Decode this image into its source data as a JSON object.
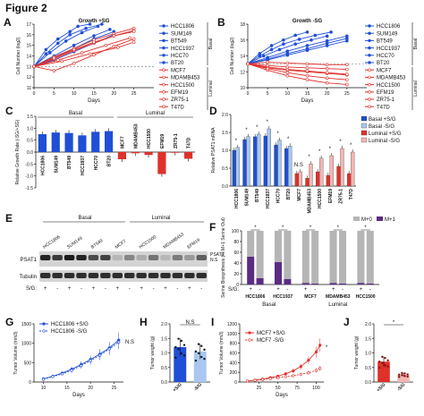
{
  "figure_title": "Figure 2",
  "colors": {
    "blue": "#1f4fd6",
    "red": "#e0302a",
    "light_blue": "#a9c7ef",
    "pink": "#f2b7b3",
    "gray": "#b5b5b5",
    "purple": "#5a2c83",
    "ink": "#111111"
  },
  "cell_lines": {
    "basal": [
      "HCC1806",
      "SUM149",
      "BT549",
      "HCC1937",
      "HCC70",
      "BT20"
    ],
    "luminal": [
      "MCF7",
      "MDAMB453",
      "HCC1500",
      "EFM19",
      "ZR75-1",
      "T47D"
    ],
    "group_basal": "Basal",
    "group_luminal": "Luminal"
  },
  "blot": {
    "headers": [
      "HCC1806",
      "SUM149",
      "BT549",
      "MCF7",
      "HCC1500",
      "MDAMB453",
      "EFM19"
    ],
    "row_psat1": "PSAT1",
    "row_tubulin": "Tubulin",
    "psat1_marks": [
      "PSAT1",
      "N.S"
    ],
    "sg_label": "S/G:",
    "signs": [
      "+",
      "-",
      "+",
      "-",
      "+",
      "-",
      "+",
      "-",
      "+",
      "-",
      "+",
      "-",
      "+",
      "-"
    ]
  },
  "chart_data": [
    {
      "panel": "A",
      "type": "line",
      "title": "Growth +SG",
      "xlabel": "Days",
      "ylabel": "Cell Number (log2)",
      "xlim": [
        0,
        30
      ],
      "ylim": [
        11,
        17
      ],
      "xticks": [
        0,
        5,
        10,
        15,
        20,
        25
      ],
      "yticks": [
        11,
        12,
        13,
        14,
        15,
        16,
        17
      ],
      "reference_line": 13,
      "series": [
        {
          "name": "HCC1806",
          "group": "basal",
          "x": [
            0,
            3,
            6,
            9,
            11,
            14
          ],
          "y": [
            13.0,
            14.6,
            15.6,
            16.3,
            16.8,
            17.0
          ]
        },
        {
          "name": "SUM149",
          "group": "basal",
          "x": [
            0,
            3,
            6,
            9,
            13,
            17
          ],
          "y": [
            13.0,
            14.2,
            15.2,
            16.0,
            16.6,
            17.0
          ]
        },
        {
          "name": "BT549",
          "group": "basal",
          "x": [
            0,
            4,
            8,
            12,
            16
          ],
          "y": [
            13.0,
            14.3,
            15.4,
            16.2,
            16.8
          ]
        },
        {
          "name": "HCC1937",
          "group": "basal",
          "x": [
            0,
            5,
            10,
            15,
            19
          ],
          "y": [
            13.0,
            14.0,
            15.0,
            15.9,
            16.5
          ]
        },
        {
          "name": "HCC70",
          "group": "basal",
          "x": [
            0,
            5,
            10,
            15,
            20
          ],
          "y": [
            13.0,
            13.8,
            14.7,
            15.6,
            16.3
          ]
        },
        {
          "name": "BT20",
          "group": "basal",
          "x": [
            0,
            5,
            10,
            15,
            20
          ],
          "y": [
            13.0,
            13.6,
            14.4,
            15.2,
            16.0
          ]
        },
        {
          "name": "MCF7",
          "group": "luminal",
          "x": [
            0,
            5,
            10,
            15,
            20,
            25
          ],
          "y": [
            13.0,
            13.9,
            14.7,
            15.5,
            16.1,
            16.6
          ]
        },
        {
          "name": "MDAMB453",
          "group": "luminal",
          "x": [
            0,
            5,
            10,
            15,
            20,
            25
          ],
          "y": [
            13.0,
            13.7,
            14.5,
            15.2,
            15.9,
            16.4
          ]
        },
        {
          "name": "HCC1500",
          "group": "luminal",
          "x": [
            0,
            6,
            12,
            18,
            24
          ],
          "y": [
            13.0,
            13.6,
            14.3,
            15.0,
            15.7
          ]
        },
        {
          "name": "EFM19",
          "group": "luminal",
          "x": [
            0,
            5,
            10,
            15,
            20,
            25
          ],
          "y": [
            13.0,
            12.6,
            13.3,
            14.1,
            14.9,
            15.6
          ]
        },
        {
          "name": "ZR75-1",
          "group": "luminal",
          "x": [
            0,
            7,
            14,
            21,
            25
          ],
          "y": [
            13.0,
            13.5,
            14.2,
            14.8,
            15.3
          ]
        },
        {
          "name": "T47D",
          "group": "luminal",
          "x": [
            0,
            5,
            10,
            15,
            20,
            25
          ],
          "y": [
            13.0,
            13.8,
            14.6,
            15.3,
            15.9,
            16.3
          ]
        }
      ]
    },
    {
      "panel": "B",
      "type": "line",
      "title": "Growth -SG",
      "xlabel": "Days",
      "ylabel": "Cell Number (log2)",
      "xlim": [
        0,
        30
      ],
      "ylim": [
        10,
        18
      ],
      "xticks": [
        0,
        5,
        10,
        15,
        20,
        25
      ],
      "yticks": [
        10,
        12,
        14,
        16,
        18
      ],
      "reference_line": 13,
      "series": [
        {
          "name": "HCC1806",
          "group": "basal",
          "x": [
            0,
            3,
            6,
            9,
            12,
            15
          ],
          "y": [
            13.0,
            14.3,
            15.3,
            16.0,
            16.6,
            17.0
          ]
        },
        {
          "name": "SUM149",
          "group": "basal",
          "x": [
            0,
            3,
            6,
            9,
            13,
            17,
            21
          ],
          "y": [
            13.0,
            14.0,
            14.8,
            15.5,
            16.1,
            16.6,
            17.0
          ]
        },
        {
          "name": "BT549",
          "group": "basal",
          "x": [
            0,
            4,
            8,
            12,
            16,
            20
          ],
          "y": [
            13.0,
            14.0,
            14.8,
            15.5,
            16.0,
            16.5
          ]
        },
        {
          "name": "HCC1937",
          "group": "basal",
          "x": [
            0,
            5,
            10,
            15,
            20,
            25
          ],
          "y": [
            13.0,
            13.8,
            14.6,
            15.3,
            15.9,
            16.5
          ]
        },
        {
          "name": "HCC70",
          "group": "basal",
          "x": [
            0,
            5,
            10,
            15,
            20,
            25
          ],
          "y": [
            13.0,
            13.6,
            14.3,
            14.9,
            15.6,
            16.2
          ]
        },
        {
          "name": "BT20",
          "group": "basal",
          "x": [
            0,
            5,
            10,
            15,
            20,
            25
          ],
          "y": [
            13.0,
            13.5,
            14.1,
            14.7,
            15.3,
            15.9
          ]
        },
        {
          "name": "MCF7",
          "group": "luminal",
          "x": [
            0,
            5,
            10,
            15,
            20,
            25
          ],
          "y": [
            13.0,
            12.5,
            12.2,
            12.0,
            11.8,
            11.6
          ]
        },
        {
          "name": "MDAMB453",
          "group": "luminal",
          "x": [
            0,
            5,
            10,
            15,
            20,
            25
          ],
          "y": [
            13.0,
            13.2,
            13.1,
            13.0,
            12.9,
            12.9
          ]
        },
        {
          "name": "HCC1500",
          "group": "luminal",
          "x": [
            0,
            5,
            10,
            15,
            20,
            25
          ],
          "y": [
            13.0,
            12.6,
            12.3,
            12.1,
            11.9,
            11.7
          ]
        },
        {
          "name": "EFM19",
          "group": "luminal",
          "x": [
            0,
            5,
            10,
            15,
            20,
            25
          ],
          "y": [
            13.0,
            12.2,
            11.5,
            11.0,
            10.6,
            10.4
          ]
        },
        {
          "name": "ZR75-1",
          "group": "luminal",
          "x": [
            0,
            5,
            10,
            15,
            20,
            25
          ],
          "y": [
            13.0,
            12.8,
            12.6,
            12.5,
            12.4,
            12.3
          ]
        },
        {
          "name": "T47D",
          "group": "luminal",
          "x": [
            0,
            5,
            10,
            15,
            20,
            25
          ],
          "y": [
            13.0,
            12.4,
            11.9,
            11.5,
            11.2,
            11.0
          ]
        }
      ]
    },
    {
      "panel": "C",
      "type": "bar",
      "ylabel": "Relative Growth Rate (-SG/+SG)",
      "ylim": [
        -1.5,
        1.5
      ],
      "yticks": [
        -1.5,
        -1.0,
        -0.5,
        0.0,
        0.5,
        1.0,
        1.5
      ],
      "categories": [
        "HCC1806",
        "SUM149",
        "BT549",
        "HCC1937",
        "HCC70",
        "BT20",
        "MCF7",
        "MDAMB453",
        "HCC1500",
        "EFM19",
        "ZR75-1",
        "T47D"
      ],
      "values": [
        0.75,
        0.82,
        0.8,
        0.7,
        0.85,
        0.88,
        -0.3,
        -0.05,
        -0.12,
        -0.92,
        -0.03,
        -0.28
      ]
    },
    {
      "panel": "D",
      "type": "bar",
      "ylabel": "Relative PSAT1 mRNA",
      "ylim": [
        0,
        2.0
      ],
      "yticks": [
        0.0,
        0.5,
        1.0,
        1.5,
        2.0
      ],
      "categories": [
        "HCC1806",
        "SUM149",
        "BT549",
        "HCC1937",
        "HCC70",
        "BT20",
        "MCF7",
        "MDAMB453",
        "HCC1500",
        "EFM19",
        "ZR75-1",
        "T47D"
      ],
      "series": [
        {
          "name": "Basal +S/G",
          "values": [
            1.0,
            1.3,
            1.38,
            1.4,
            1.15,
            1.05,
            null,
            null,
            null,
            null,
            null,
            null
          ]
        },
        {
          "name": "Basal -S/G",
          "values": [
            1.08,
            1.38,
            1.45,
            1.6,
            1.28,
            1.12,
            null,
            null,
            null,
            null,
            null,
            null
          ]
        },
        {
          "name": "Luminal +S/G",
          "values": [
            null,
            null,
            null,
            null,
            null,
            null,
            0.35,
            0.22,
            0.4,
            0.3,
            0.55,
            0.35
          ]
        },
        {
          "name": "Luminal -S/G",
          "values": [
            null,
            null,
            null,
            null,
            null,
            null,
            0.4,
            0.62,
            0.78,
            0.85,
            1.05,
            0.95
          ]
        }
      ],
      "annotations": [
        "*",
        "*",
        "*",
        "*",
        "*",
        "*",
        "N.S",
        "*",
        "*",
        "*",
        "*",
        "*"
      ]
    },
    {
      "panel": "F",
      "type": "bar",
      "ylabel": "Serine Biosynthesis (% M+1 Serine Out)",
      "ylim": [
        0,
        100
      ],
      "yticks": [
        0,
        20,
        40,
        60,
        80,
        100
      ],
      "legend": [
        "M+0",
        "M+1"
      ],
      "categories": [
        "HCC1806",
        "HCC1937",
        "MCF7",
        "MDAMB453",
        "HCC1500"
      ],
      "groups": [
        "Basal",
        "Basal",
        "Luminal",
        "Luminal",
        "Luminal"
      ],
      "series": [
        {
          "name": "M+1",
          "plus": [
            52,
            42,
            3,
            3,
            3
          ],
          "minus": [
            12,
            10,
            2,
            2,
            2
          ]
        },
        {
          "name": "M+0",
          "plus": [
            48,
            58,
            97,
            97,
            97
          ],
          "minus": [
            88,
            90,
            98,
            98,
            98
          ]
        }
      ],
      "sg_label": "S/G:",
      "annotations": [
        "*",
        "*",
        "*",
        "*",
        "*"
      ]
    },
    {
      "panel": "G",
      "type": "line",
      "xlabel": "Days",
      "ylabel": "Tumor Volume (mm3)",
      "xlim": [
        8,
        27
      ],
      "ylim": [
        0,
        1500
      ],
      "xticks": [
        10,
        15,
        20,
        25
      ],
      "yticks": [
        0,
        500,
        1000,
        1500
      ],
      "series": [
        {
          "name": "HCC1806 +S/G",
          "x": [
            10,
            12,
            14,
            16,
            18,
            20,
            22,
            24,
            26
          ],
          "y": [
            80,
            150,
            230,
            330,
            450,
            580,
            720,
            880,
            1080
          ]
        },
        {
          "name": "HCC1806 -S/G",
          "x": [
            10,
            12,
            14,
            16,
            18,
            20,
            22,
            24,
            26
          ],
          "y": [
            70,
            140,
            210,
            300,
            420,
            550,
            690,
            850,
            1030
          ]
        }
      ],
      "annotation": "N.S"
    },
    {
      "panel": "H",
      "type": "bar",
      "ylabel": "Tumor weight (g)",
      "ylim": [
        0,
        2.0
      ],
      "yticks": [
        0.0,
        0.5,
        1.0,
        1.5,
        2.0
      ],
      "categories": [
        "+S/G",
        "-S/G"
      ],
      "values": [
        1.2,
        1.05
      ],
      "annotation": "N.S"
    },
    {
      "panel": "I",
      "type": "line",
      "xlabel": "Days",
      "ylabel": "Tumor Volume (mm3)",
      "xlim": [
        0,
        110
      ],
      "ylim": [
        0,
        1200
      ],
      "xticks": [
        25,
        50,
        75,
        100
      ],
      "yticks": [
        0,
        200,
        400,
        600,
        800,
        1000,
        1200
      ],
      "series": [
        {
          "name": "MCF7 +S/G",
          "x": [
            10,
            20,
            30,
            40,
            50,
            60,
            70,
            80,
            90,
            100,
            105
          ],
          "y": [
            20,
            40,
            60,
            90,
            120,
            170,
            230,
            320,
            450,
            620,
            760
          ]
        },
        {
          "name": "MCF7 -S/G",
          "x": [
            10,
            20,
            30,
            40,
            50,
            60,
            70,
            80,
            90,
            100,
            105
          ],
          "y": [
            20,
            35,
            50,
            70,
            90,
            110,
            130,
            160,
            190,
            240,
            280
          ]
        }
      ],
      "annotation": "*"
    },
    {
      "panel": "J",
      "type": "bar",
      "ylabel": "Tumor weight (g)",
      "ylim": [
        0,
        2.0
      ],
      "yticks": [
        0.0,
        0.5,
        1.0,
        1.5,
        2.0
      ],
      "categories": [
        "+S/G",
        "-S/G"
      ],
      "values": [
        0.7,
        0.25
      ],
      "annotation": "*"
    }
  ]
}
